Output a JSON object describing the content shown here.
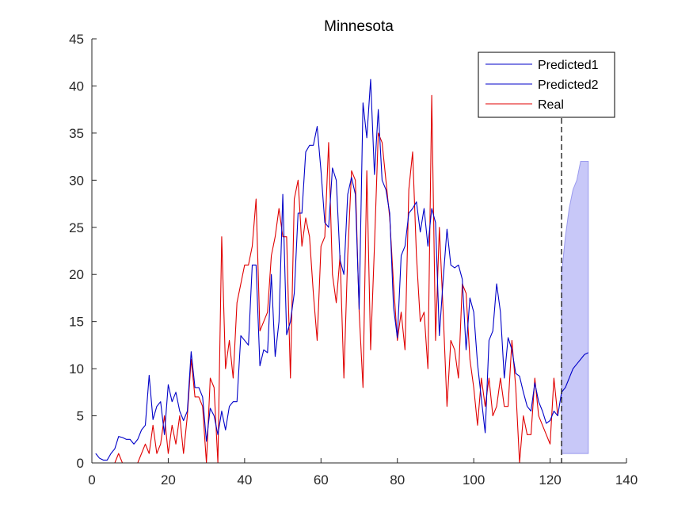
{
  "chart_data": {
    "type": "line",
    "title": "Minnesota",
    "xlabel": "",
    "ylabel": "",
    "xlim": [
      0,
      140
    ],
    "ylim": [
      0,
      45
    ],
    "x_ticks": [
      0,
      20,
      40,
      60,
      80,
      100,
      120,
      140
    ],
    "y_ticks": [
      0,
      5,
      10,
      15,
      20,
      25,
      30,
      35,
      40,
      45
    ],
    "grid": false,
    "legend": {
      "placement": "top-right",
      "entries": [
        "Predicted1",
        "Predicted2",
        "Real"
      ]
    },
    "colors": {
      "predicted": "#0000c8",
      "real": "#e00000",
      "band_fill": "#c8c8f8",
      "band_edge": "#9a9aee",
      "axes": "#262626",
      "vline": "#000000"
    },
    "forecast_start_x": 123,
    "series": [
      {
        "name": "Predicted1",
        "x": [
          1,
          2,
          3,
          4,
          5,
          6,
          7,
          8,
          9,
          10,
          11,
          12,
          13,
          14,
          15,
          16,
          17,
          18,
          19,
          20,
          21,
          22,
          23,
          24,
          25,
          26,
          27,
          28,
          29,
          30,
          31,
          32,
          33,
          34,
          35,
          36,
          37,
          38,
          39,
          40,
          41,
          42,
          43,
          44,
          45,
          46,
          47,
          48,
          49,
          50,
          51,
          52,
          53,
          54,
          55,
          56,
          57,
          58,
          59,
          60,
          61,
          62,
          63,
          64,
          65,
          66,
          67,
          68,
          69,
          70,
          71,
          72,
          73,
          74,
          75,
          76,
          77,
          78,
          79,
          80,
          81,
          82,
          83,
          84,
          85,
          86,
          87,
          88,
          89,
          90,
          91,
          92,
          93,
          94,
          95,
          96,
          97,
          98,
          99,
          100,
          101,
          102,
          103,
          104,
          105,
          106,
          107,
          108,
          109,
          110,
          111,
          112,
          113,
          114,
          115,
          116,
          117,
          118,
          119,
          120,
          121,
          122,
          123
        ],
        "values": [
          1,
          0.5,
          0.3,
          0.3,
          1,
          1.5,
          2.8,
          2.7,
          2.5,
          2.5,
          2,
          2.5,
          3.5,
          4,
          9.3,
          4.6,
          6,
          6.5,
          3,
          8.3,
          6.5,
          7.5,
          5.5,
          4.5,
          5.5,
          11.8,
          8,
          8,
          7,
          2.3,
          5.8,
          5,
          3,
          5.5,
          3.5,
          6,
          6.5,
          6.5,
          13.5,
          13,
          12.5,
          21,
          21,
          10.3,
          12,
          11.7,
          20,
          11.3,
          15,
          28.5,
          13.6,
          15,
          18,
          26.5,
          26.5,
          33,
          33.7,
          33.7,
          35.7,
          31,
          25.5,
          25,
          31.3,
          30,
          21.5,
          20,
          28.5,
          30.3,
          28.5,
          16.3,
          38.2,
          34.5,
          40.7,
          30.6,
          37.5,
          30,
          29,
          26.5,
          16.5,
          13.3,
          22,
          23,
          26.5,
          27,
          27.7,
          24.5,
          27,
          23,
          27,
          25.5,
          13.5,
          19.5,
          24.8,
          21,
          20.7,
          21,
          19.5,
          12,
          17.5,
          16,
          10.5,
          6.8,
          3.2,
          13,
          14,
          19,
          16,
          9,
          13.3,
          12,
          9.5,
          9.2,
          7.5,
          6,
          5.5,
          8.5,
          6.5,
          5.5,
          4.2,
          4.5,
          5.5,
          5,
          7.5
        ]
      },
      {
        "name": "Predicted2",
        "x": [
          123,
          124,
          125,
          126,
          127,
          128,
          129,
          130
        ],
        "values": [
          7.5,
          8,
          9,
          10,
          10.5,
          11,
          11.5,
          11.7
        ]
      },
      {
        "name": "Real",
        "x": [
          1,
          2,
          3,
          4,
          5,
          6,
          7,
          8,
          9,
          10,
          11,
          12,
          13,
          14,
          15,
          16,
          17,
          18,
          19,
          20,
          21,
          22,
          23,
          24,
          25,
          26,
          27,
          28,
          29,
          30,
          31,
          32,
          33,
          34,
          35,
          36,
          37,
          38,
          39,
          40,
          41,
          42,
          43,
          44,
          45,
          46,
          47,
          48,
          49,
          50,
          51,
          52,
          53,
          54,
          55,
          56,
          57,
          58,
          59,
          60,
          61,
          62,
          63,
          64,
          65,
          66,
          67,
          68,
          69,
          70,
          71,
          72,
          73,
          74,
          75,
          76,
          77,
          78,
          79,
          80,
          81,
          82,
          83,
          84,
          85,
          86,
          87,
          88,
          89,
          90,
          91,
          92,
          93,
          94,
          95,
          96,
          97,
          98,
          99,
          100,
          101,
          102,
          103,
          104,
          105,
          106,
          107,
          108,
          109,
          110,
          111,
          112,
          113,
          114,
          115,
          116,
          117,
          118,
          119,
          120,
          121,
          122
        ],
        "values": [
          0,
          0,
          0,
          0,
          0,
          0,
          1,
          0,
          0,
          0,
          0,
          0,
          1,
          2,
          1,
          4,
          1,
          2,
          5,
          1,
          4,
          2,
          5,
          1,
          5,
          11,
          7,
          7,
          6,
          0,
          9,
          8,
          0,
          24,
          10,
          13,
          9,
          17,
          19,
          21,
          21,
          23,
          28,
          14,
          15,
          16,
          22,
          24,
          27,
          24,
          24,
          9,
          28,
          30,
          23,
          26,
          24,
          18,
          13,
          23,
          24,
          34,
          20,
          17,
          22,
          9,
          22,
          31,
          30,
          16,
          8,
          31,
          12,
          23,
          35,
          34,
          30,
          26,
          19,
          13,
          16,
          12,
          29,
          33,
          22,
          15,
          16,
          10,
          39,
          13,
          25,
          16,
          6,
          13,
          12,
          9,
          19,
          18,
          11,
          8,
          4,
          9,
          6,
          9,
          5,
          6,
          9,
          6,
          6,
          13,
          8,
          0,
          5,
          3,
          3,
          9,
          5,
          4,
          3,
          2,
          9,
          5
        ]
      }
    ],
    "band": {
      "x": [
        123,
        124,
        125,
        126,
        127,
        128,
        129,
        130
      ],
      "lower": [
        1,
        1,
        1,
        1,
        1,
        1,
        1,
        1
      ],
      "upper": [
        20,
        24,
        27,
        29,
        30,
        32,
        32,
        32
      ]
    }
  }
}
